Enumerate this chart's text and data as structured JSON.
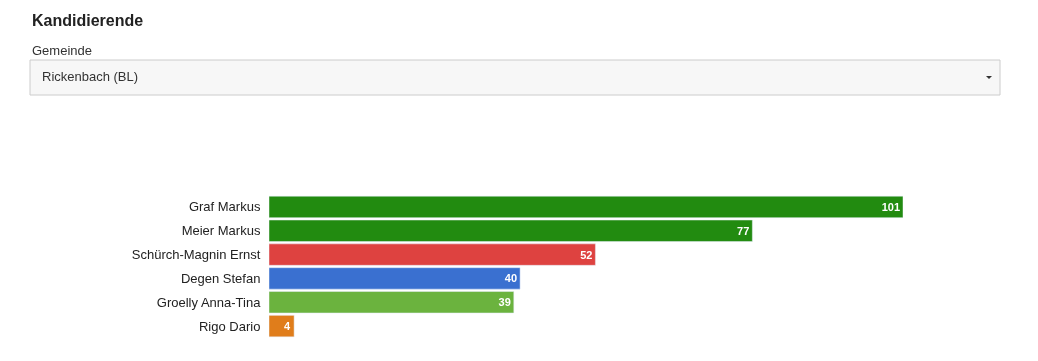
{
  "chart_data": {
    "type": "bar",
    "orientation": "horizontal",
    "title": "Kandidierende",
    "subtitle": "Gemeinde",
    "annotations": [
      "Rickenbach (BL)"
    ],
    "categories": [
      "Graf Markus",
      "Meier Markus",
      "Schürch-Magnin Ernst",
      "Degen Stefan",
      "Groelly Anna-Tina",
      "Rigo Dario"
    ],
    "values": [
      101,
      77,
      52,
      40,
      39,
      4
    ],
    "colors": [
      "#228b10",
      "#228b10",
      "#de4240",
      "#3a70d0",
      "#6bb33e",
      "#e07d1b"
    ],
    "xlim": [
      0,
      101
    ],
    "data_labels": true,
    "legend": false
  }
}
